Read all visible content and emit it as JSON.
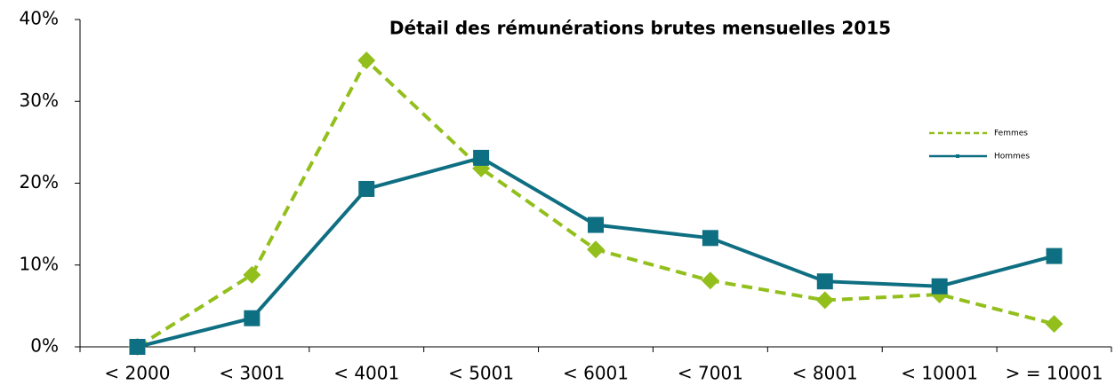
{
  "chart_data": {
    "type": "line",
    "title": "Détail des rémunérations brutes mensuelles 2015",
    "categories": [
      "< 2000",
      "< 3001",
      "< 4001",
      "< 5001",
      "< 6001",
      "< 7001",
      "< 8001",
      "< 10001",
      "> = 10001"
    ],
    "series": [
      {
        "name": "Femmes",
        "color": "#93bf1c",
        "dash": true,
        "marker": "diamond",
        "values": [
          0,
          8.8,
          35.0,
          21.8,
          11.9,
          8.1,
          5.7,
          6.4,
          2.8
        ]
      },
      {
        "name": "Hommes",
        "color": "#0f6f82",
        "dash": false,
        "marker": "square",
        "values": [
          0,
          3.5,
          19.3,
          23.1,
          14.9,
          13.3,
          8.0,
          7.4,
          11.1
        ]
      }
    ],
    "ylim": [
      0,
      40
    ],
    "yticks": [
      {
        "value": 0,
        "label": "0%"
      },
      {
        "value": 10,
        "label": "10%"
      },
      {
        "value": 20,
        "label": "20%"
      },
      {
        "value": 30,
        "label": "30%"
      },
      {
        "value": 40,
        "label": "40%"
      }
    ],
    "grid": false,
    "legend": "right"
  }
}
